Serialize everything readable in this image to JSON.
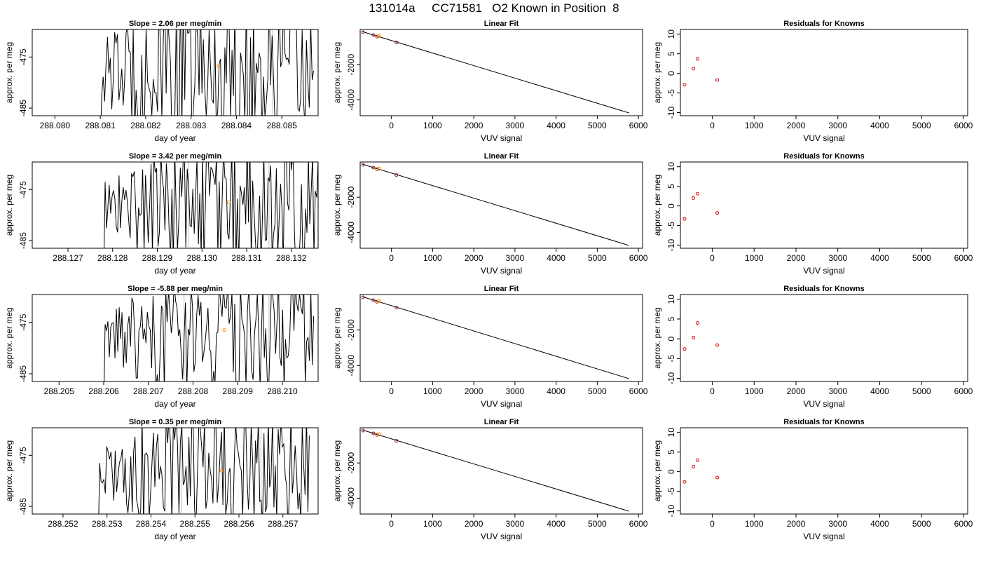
{
  "figure_title": "131014a     CC71581   O2 Known in Position  8",
  "colors": {
    "trace": "#000000",
    "marker": "#ff8c00",
    "residual": "#dd0000",
    "refline": "#c0c0c0"
  },
  "chart_data": [
    {
      "panel": "row1-time",
      "type": "line",
      "title": "Slope =  2.06  per meg/min",
      "xlabel": "day of year",
      "ylabel": "approx. per meg",
      "xlim": [
        288.0795,
        288.0858
      ],
      "ylim": [
        -486.5,
        -469.6
      ],
      "x_ticks": [
        288.08,
        288.081,
        288.082,
        288.083,
        288.084,
        288.085
      ],
      "x_tick_labels": [
        "288.080",
        "288.081",
        "288.082",
        "288.083",
        "288.084",
        "288.085"
      ],
      "y_ticks": [
        -475,
        -485
      ],
      "y_tick_labels": [
        "-475",
        "-485"
      ],
      "t_start": 288.081,
      "t_end": 288.0857,
      "n_points": 150,
      "noise": 16,
      "ref_lines_x": [
        288.0827,
        288.0848
      ],
      "marker": {
        "x": 288.0836,
        "y": -476.8
      }
    },
    {
      "panel": "row1-fit",
      "type": "scatter",
      "title": "Linear Fit",
      "xlabel": "VUV signal",
      "ylabel": "approx. per meg",
      "xlim": [
        -760,
        6100
      ],
      "ylim": [
        -4900,
        0
      ],
      "x_ticks": [
        0,
        1000,
        2000,
        3000,
        4000,
        5000,
        6000
      ],
      "x_tick_labels": [
        "0",
        "1000",
        "2000",
        "3000",
        "4000",
        "5000",
        "6000"
      ],
      "y_ticks": [
        -2000,
        -4000
      ],
      "y_tick_labels": [
        "-2000",
        "-4000"
      ],
      "points": [
        [
          -690,
          -160
        ],
        [
          -440,
          -320
        ],
        [
          -350,
          -410
        ],
        [
          120,
          -740
        ]
      ],
      "fit_line": [
        [
          -700,
          -130
        ],
        [
          5770,
          -4740
        ]
      ],
      "marker": {
        "x": -300,
        "y": -370
      }
    },
    {
      "panel": "row1-resid",
      "type": "scatter",
      "title": "Residuals for Knowns",
      "xlabel": "VUV signal",
      "ylabel": "approx. per meg",
      "xlim": [
        -760,
        6100
      ],
      "ylim": [
        -10.8,
        11.2
      ],
      "x_ticks": [
        0,
        1000,
        2000,
        3000,
        4000,
        5000,
        6000
      ],
      "x_tick_labels": [
        "0",
        "1000",
        "2000",
        "3000",
        "4000",
        "5000",
        "6000"
      ],
      "y_ticks": [
        -10,
        -5,
        0,
        5,
        10
      ],
      "y_tick_labels": [
        "-10",
        "-5",
        "0",
        "5",
        "10"
      ],
      "points": [
        [
          -660,
          -2.9
        ],
        [
          -450,
          1.2
        ],
        [
          -350,
          3.7
        ],
        [
          120,
          -1.7
        ]
      ]
    },
    {
      "panel": "row2-time",
      "type": "line",
      "title": "Slope =  3.42  per meg/min",
      "xlabel": "day of year",
      "ylabel": "approx. per meg",
      "xlim": [
        288.1262,
        288.1326
      ],
      "ylim": [
        -486.5,
        -469.6
      ],
      "x_ticks": [
        288.127,
        288.128,
        288.129,
        288.13,
        288.131,
        288.132
      ],
      "x_tick_labels": [
        "288.127",
        "288.128",
        "288.129",
        "288.130",
        "288.131",
        "288.132"
      ],
      "y_ticks": [
        -475,
        -485
      ],
      "y_tick_labels": [
        "-475",
        "-485"
      ],
      "t_start": 288.1278,
      "t_end": 288.1326,
      "n_points": 155,
      "noise": 13,
      "ref_lines_x": [
        288.1297,
        288.1315
      ],
      "marker": {
        "x": 288.1306,
        "y": -477.5
      }
    },
    {
      "panel": "row2-fit",
      "type": "scatter",
      "title": "Linear Fit",
      "xlabel": "VUV signal",
      "ylabel": "approx. per meg",
      "xlim": [
        -760,
        6100
      ],
      "ylim": [
        -4900,
        0
      ],
      "x_ticks": [
        0,
        1000,
        2000,
        3000,
        4000,
        5000,
        6000
      ],
      "x_tick_labels": [
        "0",
        "1000",
        "2000",
        "3000",
        "4000",
        "5000",
        "6000"
      ],
      "y_ticks": [
        -2000,
        -4000
      ],
      "y_tick_labels": [
        "-2000",
        "-4000"
      ],
      "points": [
        [
          -690,
          -160
        ],
        [
          -440,
          -320
        ],
        [
          -350,
          -410
        ],
        [
          120,
          -740
        ]
      ],
      "fit_line": [
        [
          -700,
          -130
        ],
        [
          5770,
          -4740
        ]
      ],
      "marker": {
        "x": -300,
        "y": -370
      }
    },
    {
      "panel": "row2-resid",
      "type": "scatter",
      "title": "Residuals for Knowns",
      "xlabel": "VUV signal",
      "ylabel": "approx. per meg",
      "xlim": [
        -760,
        6100
      ],
      "ylim": [
        -10.8,
        11.2
      ],
      "x_ticks": [
        0,
        1000,
        2000,
        3000,
        4000,
        5000,
        6000
      ],
      "x_tick_labels": [
        "0",
        "1000",
        "2000",
        "3000",
        "4000",
        "5000",
        "6000"
      ],
      "y_ticks": [
        -10,
        -5,
        0,
        5,
        10
      ],
      "y_tick_labels": [
        "-10",
        "-5",
        "0",
        "5",
        "10"
      ],
      "points": [
        [
          -660,
          -3.3
        ],
        [
          -450,
          2.0
        ],
        [
          -350,
          3.1
        ],
        [
          120,
          -1.8
        ]
      ]
    },
    {
      "panel": "row3-time",
      "type": "line",
      "title": "Slope =  -5.88  per meg/min",
      "xlabel": "day of year",
      "ylabel": "approx. per meg",
      "xlim": [
        288.2044,
        288.2108
      ],
      "ylim": [
        -486.5,
        -469.6
      ],
      "x_ticks": [
        288.205,
        288.206,
        288.207,
        288.208,
        288.209,
        288.21
      ],
      "x_tick_labels": [
        "288.205",
        "288.206",
        "288.207",
        "288.208",
        "288.209",
        "288.210"
      ],
      "y_ticks": [
        -475,
        -485
      ],
      "y_tick_labels": [
        "-475",
        "-485"
      ],
      "t_start": 288.206,
      "t_end": 288.2107,
      "n_points": 150,
      "noise": 11,
      "ref_lines_x": [
        288.2078,
        288.2097
      ],
      "marker": {
        "x": 288.2087,
        "y": -476.5
      }
    },
    {
      "panel": "row3-fit",
      "type": "scatter",
      "title": "Linear Fit",
      "xlabel": "VUV signal",
      "ylabel": "approx. per meg",
      "xlim": [
        -760,
        6100
      ],
      "ylim": [
        -4900,
        0
      ],
      "x_ticks": [
        0,
        1000,
        2000,
        3000,
        4000,
        5000,
        6000
      ],
      "x_tick_labels": [
        "0",
        "1000",
        "2000",
        "3000",
        "4000",
        "5000",
        "6000"
      ],
      "y_ticks": [
        -2000,
        -4000
      ],
      "y_tick_labels": [
        "-2000",
        "-4000"
      ],
      "points": [
        [
          -690,
          -160
        ],
        [
          -440,
          -320
        ],
        [
          -350,
          -410
        ],
        [
          120,
          -740
        ]
      ],
      "fit_line": [
        [
          -700,
          -130
        ],
        [
          5770,
          -4740
        ]
      ],
      "marker": {
        "x": -300,
        "y": -370
      }
    },
    {
      "panel": "row3-resid",
      "type": "scatter",
      "title": "Residuals for Knowns",
      "xlabel": "VUV signal",
      "ylabel": "approx. per meg",
      "xlim": [
        -760,
        6100
      ],
      "ylim": [
        -10.8,
        11.2
      ],
      "x_ticks": [
        0,
        1000,
        2000,
        3000,
        4000,
        5000,
        6000
      ],
      "x_tick_labels": [
        "0",
        "1000",
        "2000",
        "3000",
        "4000",
        "5000",
        "6000"
      ],
      "y_ticks": [
        -10,
        -5,
        0,
        5,
        10
      ],
      "y_tick_labels": [
        "-10",
        "-5",
        "0",
        "5",
        "10"
      ],
      "points": [
        [
          -660,
          -2.6
        ],
        [
          -450,
          0.3
        ],
        [
          -350,
          4.0
        ],
        [
          120,
          -1.6
        ]
      ]
    },
    {
      "panel": "row4-time",
      "type": "line",
      "title": "Slope =  0.35  per meg/min",
      "xlabel": "day of year",
      "ylabel": "approx. per meg",
      "xlim": [
        288.2513,
        288.2578
      ],
      "ylim": [
        -486.5,
        -469.6
      ],
      "x_ticks": [
        288.252,
        288.253,
        288.254,
        288.255,
        288.256,
        288.257
      ],
      "x_tick_labels": [
        "288.252",
        "288.253",
        "288.254",
        "288.255",
        "288.256",
        "288.257"
      ],
      "y_ticks": [
        -475,
        -485
      ],
      "y_tick_labels": [
        "-475",
        "-485"
      ],
      "t_start": 288.2528,
      "t_end": 288.2576,
      "n_points": 150,
      "noise": 12,
      "ref_lines_x": [
        288.2547,
        288.2565
      ],
      "marker": {
        "x": 288.2556,
        "y": -478.0
      }
    },
    {
      "panel": "row4-fit",
      "type": "scatter",
      "title": "Linear Fit",
      "xlabel": "VUV signal",
      "ylabel": "approx. per meg",
      "xlim": [
        -760,
        6100
      ],
      "ylim": [
        -4900,
        0
      ],
      "x_ticks": [
        0,
        1000,
        2000,
        3000,
        4000,
        5000,
        6000
      ],
      "x_tick_labels": [
        "0",
        "1000",
        "2000",
        "3000",
        "4000",
        "5000",
        "6000"
      ],
      "y_ticks": [
        -2000,
        -4000
      ],
      "y_tick_labels": [
        "-2000",
        "-4000"
      ],
      "points": [
        [
          -690,
          -160
        ],
        [
          -440,
          -320
        ],
        [
          -350,
          -410
        ],
        [
          120,
          -740
        ]
      ],
      "fit_line": [
        [
          -700,
          -130
        ],
        [
          5770,
          -4740
        ]
      ],
      "marker": {
        "x": -300,
        "y": -370
      }
    },
    {
      "panel": "row4-resid",
      "type": "scatter",
      "title": "Residuals for Knowns",
      "xlabel": "VUV signal",
      "ylabel": "approx. per meg",
      "xlim": [
        -760,
        6100
      ],
      "ylim": [
        -10.8,
        11.2
      ],
      "x_ticks": [
        0,
        1000,
        2000,
        3000,
        4000,
        5000,
        6000
      ],
      "x_tick_labels": [
        "0",
        "1000",
        "2000",
        "3000",
        "4000",
        "5000",
        "6000"
      ],
      "y_ticks": [
        -10,
        -5,
        0,
        5,
        10
      ],
      "y_tick_labels": [
        "-10",
        "-5",
        "0",
        "5",
        "10"
      ],
      "points": [
        [
          -660,
          -2.6
        ],
        [
          -450,
          1.3
        ],
        [
          -350,
          2.9
        ],
        [
          120,
          -1.5
        ]
      ]
    }
  ]
}
